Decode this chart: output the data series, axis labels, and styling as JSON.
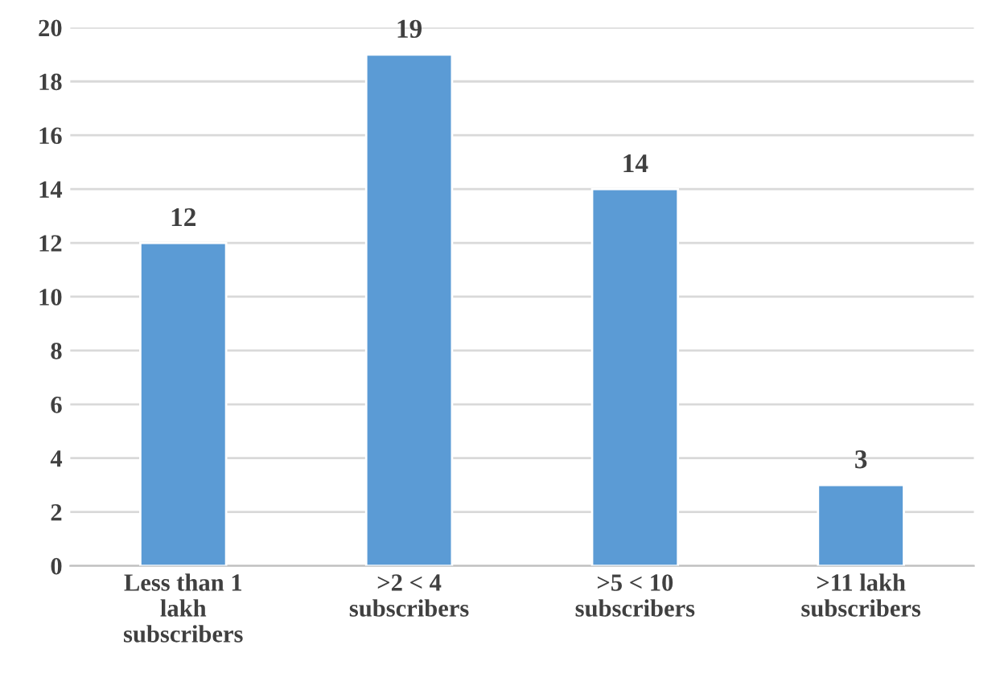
{
  "chart_data": {
    "type": "bar",
    "categories": [
      "Less than 1 lakh subscribers",
      ">2 < 4 subscribers",
      ">5 < 10 subscribers",
      ">11 lakh subscribers"
    ],
    "values": [
      12,
      19,
      14,
      3
    ],
    "color": "#5b9bd5",
    "ylim": [
      0,
      20
    ],
    "yticks": [
      0,
      2,
      4,
      6,
      8,
      10,
      12,
      14,
      16,
      18,
      20
    ],
    "grid": "y",
    "data_labels": true
  }
}
